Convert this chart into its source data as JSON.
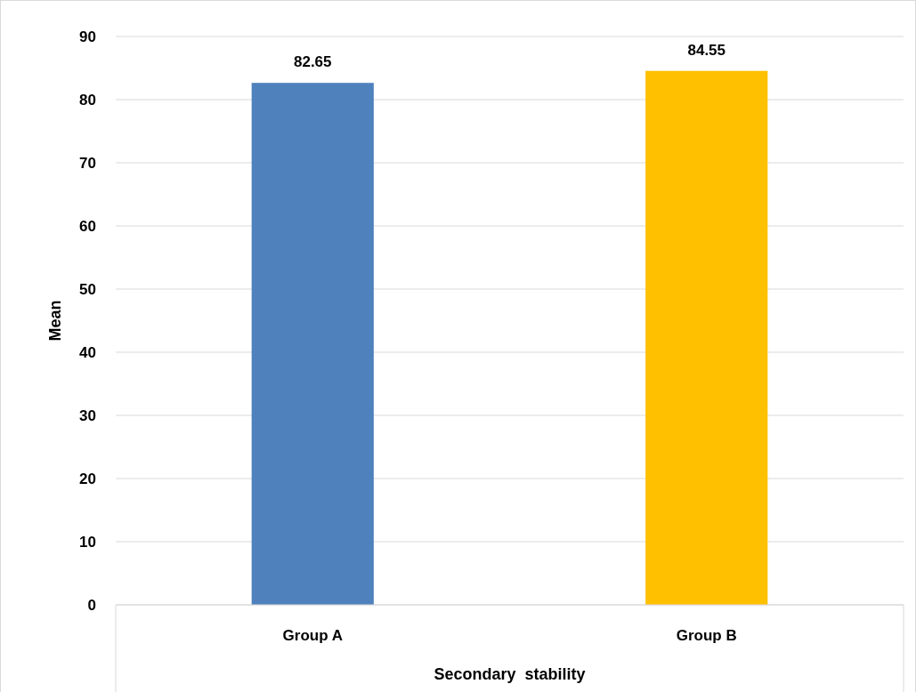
{
  "chart_data": {
    "type": "bar",
    "xlabel": "Secondary  stability",
    "ylabel": "Mean",
    "categories": [
      "Group A",
      "Group B"
    ],
    "values": [
      82.65,
      84.55
    ],
    "colors": [
      "#4f81bd",
      "#ffc000"
    ],
    "data_labels": true,
    "ylim": [
      0,
      90
    ],
    "yticks": [
      0,
      10,
      20,
      30,
      40,
      50,
      60,
      70,
      80,
      90
    ],
    "grid": "y"
  }
}
